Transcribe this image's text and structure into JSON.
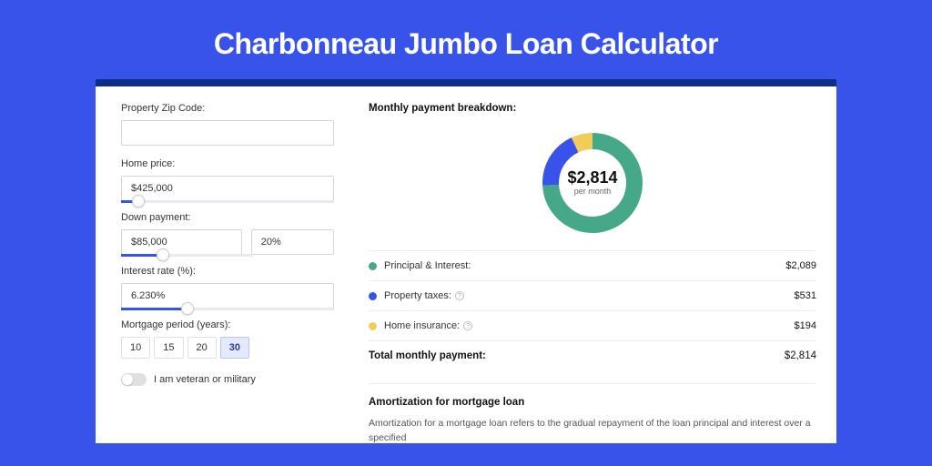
{
  "header": {
    "title": "Charbonneau Jumbo Loan Calculator"
  },
  "colors": {
    "page_bg": "#3853ea",
    "shell_bg": "#0d2e8a",
    "card_bg": "#ffffff",
    "accent": "#3853ea",
    "green": "#44a889",
    "blue": "#3853ea",
    "yellow": "#f0cc5a",
    "border": "#eeeeee"
  },
  "form": {
    "zip": {
      "label": "Property Zip Code:",
      "value": ""
    },
    "home_price": {
      "label": "Home price:",
      "value": "$425,000",
      "slider_pct": 8
    },
    "down_payment": {
      "label": "Down payment:",
      "value": "$85,000",
      "pct_value": "20%",
      "slider_pct": 20
    },
    "interest_rate": {
      "label": "Interest rate (%):",
      "value": "6.230%",
      "slider_pct": 31
    },
    "period": {
      "label": "Mortgage period (years):",
      "options": [
        "10",
        "15",
        "20",
        "30"
      ],
      "active_index": 3
    },
    "veteran": {
      "label": "I am veteran or military",
      "on": false
    }
  },
  "breakdown": {
    "title": "Monthly payment breakdown:",
    "donut": {
      "center_big": "$2,814",
      "center_small": "per month",
      "segments": [
        {
          "label": "Principal & Interest",
          "value_label": "$2,089",
          "pct": 74.2,
          "color": "#44a889"
        },
        {
          "label": "Property taxes",
          "value_label": "$531",
          "pct": 18.9,
          "color": "#3853ea"
        },
        {
          "label": "Home insurance",
          "value_label": "$194",
          "pct": 6.9,
          "color": "#f0cc5a"
        }
      ]
    },
    "rows": [
      {
        "dot": "#44a889",
        "label": "Principal & Interest:",
        "info": false,
        "value": "$2,089"
      },
      {
        "dot": "#3853ea",
        "label": "Property taxes:",
        "info": true,
        "value": "$531"
      },
      {
        "dot": "#f0cc5a",
        "label": "Home insurance:",
        "info": true,
        "value": "$194"
      }
    ],
    "total": {
      "label": "Total monthly payment:",
      "value": "$2,814"
    }
  },
  "amortization": {
    "title": "Amortization for mortgage loan",
    "text": "Amortization for a mortgage loan refers to the gradual repayment of the loan principal and interest over a specified"
  }
}
